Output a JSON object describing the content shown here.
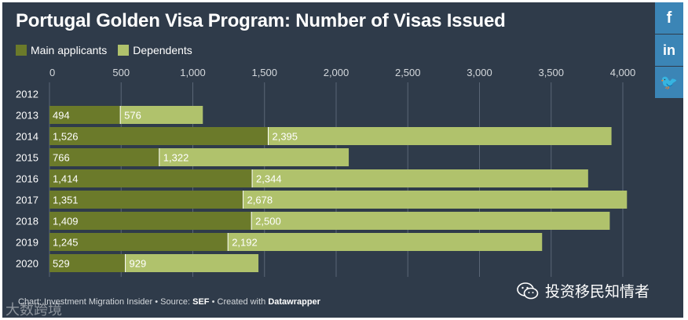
{
  "chart_data": {
    "type": "bar",
    "stacked": true,
    "orientation": "horizontal",
    "title": "Portugal Golden Visa Program: Number of Visas Issued",
    "categories": [
      "2012",
      "2013",
      "2014",
      "2015",
      "2016",
      "2017",
      "2018",
      "2019",
      "2020"
    ],
    "series": [
      {
        "name": "Main applicants",
        "color": "#6b7a2a",
        "values": [
          null,
          494,
          1526,
          766,
          1414,
          1351,
          1409,
          1245,
          529
        ],
        "labels": [
          "",
          "494",
          "1,526",
          "766",
          "1,414",
          "1,351",
          "1,409",
          "1,245",
          "529"
        ]
      },
      {
        "name": "Dependents",
        "color": "#b0c26c",
        "values": [
          null,
          576,
          2395,
          1322,
          2344,
          2678,
          2500,
          2192,
          929
        ],
        "labels": [
          "",
          "576",
          "2,395",
          "1,322",
          "2,344",
          "2,678",
          "2,500",
          "2,192",
          "929"
        ]
      }
    ],
    "xlim": [
      0,
      4000
    ],
    "xticks": [
      0,
      500,
      1000,
      1500,
      2000,
      2500,
      3000,
      3500,
      4000
    ],
    "xtick_labels": [
      "0",
      "500",
      "1,000",
      "1,500",
      "2,000",
      "2,500",
      "3,000",
      "3,500",
      "4,000"
    ],
    "legend_position": "top-left",
    "xlabel": "",
    "ylabel": ""
  },
  "legend": {
    "main_label": "Main applicants",
    "dependents_label": "Dependents"
  },
  "social": {
    "facebook": "f",
    "linkedin": "in",
    "twitter": "🐦"
  },
  "footer": {
    "prefix": "Chart: Investment Migration Insider • Source: ",
    "source": "SEF",
    "middle": " • Created with ",
    "tool": "Datawrapper"
  },
  "wechat_label": "投资移民知情者",
  "watermark_text": "大数跨境",
  "colors": {
    "background": "#2f3b4a",
    "main": "#6b7a2a",
    "dependents": "#b0c26c",
    "social": "#3b85b6"
  }
}
